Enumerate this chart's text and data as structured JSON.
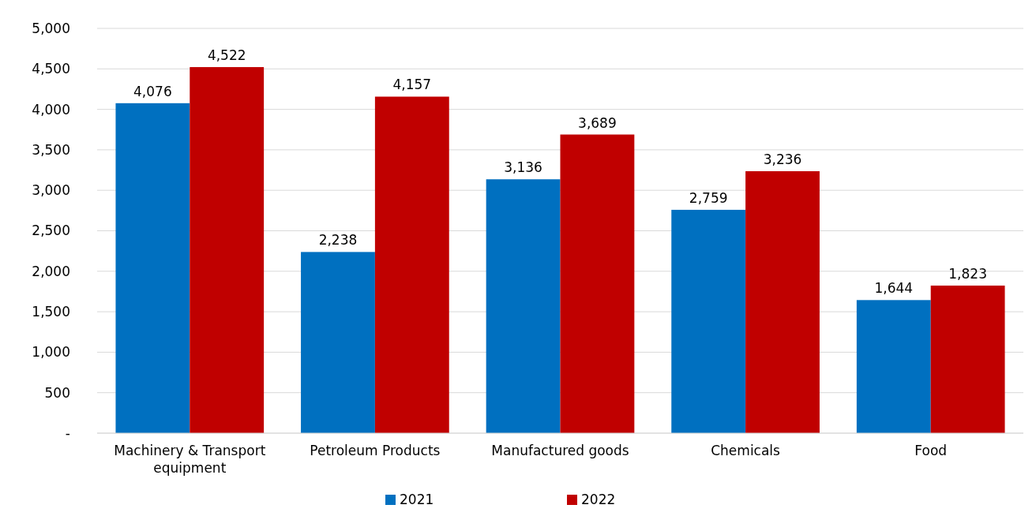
{
  "chart_data": {
    "type": "bar",
    "categories": [
      "Machinery & Transport equipment",
      "Petroleum Products",
      "Manufactured goods",
      "Chemicals",
      "Food"
    ],
    "series": [
      {
        "name": "2021",
        "color": "#0070c0",
        "values": [
          4076,
          2238,
          3136,
          2759,
          1644
        ],
        "value_labels": [
          "4,076",
          "2,238",
          "3,136",
          "2,759",
          "1,644"
        ]
      },
      {
        "name": "2022",
        "color": "#c00000",
        "values": [
          4522,
          4157,
          3689,
          3236,
          1823
        ],
        "value_labels": [
          "4,522",
          "4,157",
          "3,689",
          "3,236",
          "1,823"
        ]
      }
    ],
    "ylim": [
      0,
      5000
    ],
    "yticks": [
      {
        "value": 0,
        "label": "-"
      },
      {
        "value": 500,
        "label": "500"
      },
      {
        "value": 1000,
        "label": "1,000"
      },
      {
        "value": 1500,
        "label": "1,500"
      },
      {
        "value": 2000,
        "label": "2,000"
      },
      {
        "value": 2500,
        "label": "2,500"
      },
      {
        "value": 3000,
        "label": "3,000"
      },
      {
        "value": 3500,
        "label": "3,500"
      },
      {
        "value": 4000,
        "label": "4,000"
      },
      {
        "value": 4500,
        "label": "4,500"
      },
      {
        "value": 5000,
        "label": "5,000"
      }
    ],
    "grid": "y",
    "legend": "bottom"
  }
}
